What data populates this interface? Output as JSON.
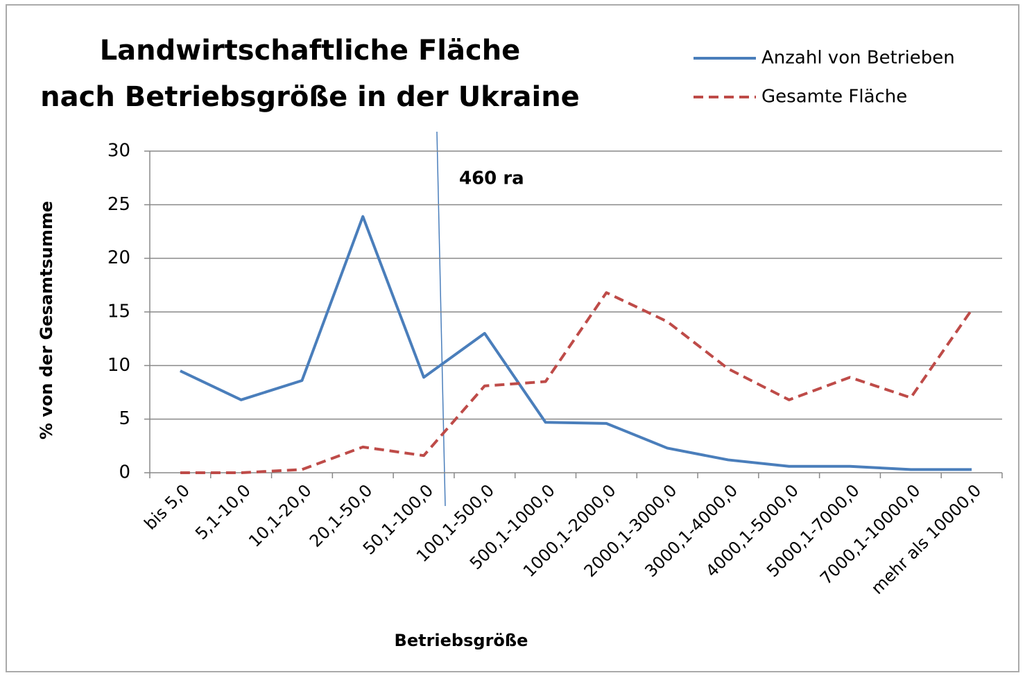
{
  "chart_data": {
    "type": "line",
    "title": [
      "Landwirtschaftliche Fläche",
      "nach Betriebsgröße in der Ukraine"
    ],
    "x_label": "Betriebsgröße",
    "y_label": "% von der Gesamtsumme",
    "annotation": "460 ra",
    "categories": [
      "bis 5,0",
      "5,1-10,0",
      "10,1-20,0",
      "20,1-50,0",
      "50,1-100,0",
      "100,1-500,0",
      "500,1-1000,0",
      "1000,1-2000,0",
      "2000,1-3000,0",
      "3000,1-4000,0",
      "4000,1-5000,0",
      "5000,1-7000,0",
      "7000,1-10000,0",
      "mehr als 10000,0"
    ],
    "series": [
      {
        "name": "Anzahl von Betrieben",
        "color": "#4a7ebb",
        "dashed": false,
        "values": [
          9.5,
          6.8,
          8.6,
          23.9,
          8.9,
          13.0,
          4.7,
          4.6,
          2.3,
          1.2,
          0.6,
          0.6,
          0.3,
          0.3
        ]
      },
      {
        "name": "Gesamte Fläche",
        "color": "#be4b48",
        "dashed": true,
        "values": [
          0,
          0,
          0.3,
          2.4,
          1.6,
          8.1,
          8.5,
          16.8,
          14.1,
          9.7,
          6.8,
          8.9,
          7.0,
          15.2
        ]
      }
    ],
    "ylim": [
      0,
      30
    ],
    "yticks": [
      0,
      5,
      10,
      15,
      20,
      25,
      30
    ],
    "grid": true,
    "legend": "top-right"
  }
}
